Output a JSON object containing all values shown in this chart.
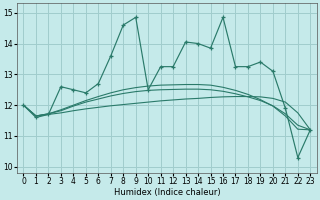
{
  "xlabel": "Humidex (Indice chaleur)",
  "xlim": [
    -0.5,
    23.5
  ],
  "ylim": [
    9.8,
    15.3
  ],
  "yticks": [
    10,
    11,
    12,
    13,
    14,
    15
  ],
  "xticks": [
    0,
    1,
    2,
    3,
    4,
    5,
    6,
    7,
    8,
    9,
    10,
    11,
    12,
    13,
    14,
    15,
    16,
    17,
    18,
    19,
    20,
    21,
    22,
    23
  ],
  "bg_color": "#c5eaea",
  "grid_color": "#a0cdcd",
  "line_color": "#2a7a6a",
  "main": [
    12.0,
    11.6,
    11.7,
    12.6,
    12.5,
    12.4,
    12.7,
    13.6,
    14.6,
    14.85,
    12.5,
    13.25,
    13.25,
    14.05,
    14.0,
    13.85,
    14.85,
    13.25,
    13.25,
    13.4,
    13.1,
    11.9,
    10.3,
    11.2
  ],
  "line2": [
    12.0,
    11.65,
    11.7,
    11.75,
    11.82,
    11.88,
    11.93,
    11.98,
    12.02,
    12.06,
    12.1,
    12.14,
    12.17,
    12.2,
    12.22,
    12.25,
    12.27,
    12.28,
    12.28,
    12.27,
    12.22,
    12.1,
    11.75,
    11.2
  ],
  "line3": [
    12.0,
    11.65,
    11.72,
    11.82,
    11.97,
    12.1,
    12.2,
    12.3,
    12.38,
    12.44,
    12.48,
    12.5,
    12.51,
    12.52,
    12.52,
    12.5,
    12.45,
    12.37,
    12.27,
    12.15,
    11.98,
    11.72,
    11.35,
    11.2
  ],
  "line4": [
    12.0,
    11.65,
    11.72,
    11.85,
    12.0,
    12.15,
    12.28,
    12.4,
    12.5,
    12.57,
    12.62,
    12.65,
    12.66,
    12.67,
    12.67,
    12.65,
    12.58,
    12.48,
    12.35,
    12.18,
    11.97,
    11.65,
    11.22,
    11.2
  ]
}
